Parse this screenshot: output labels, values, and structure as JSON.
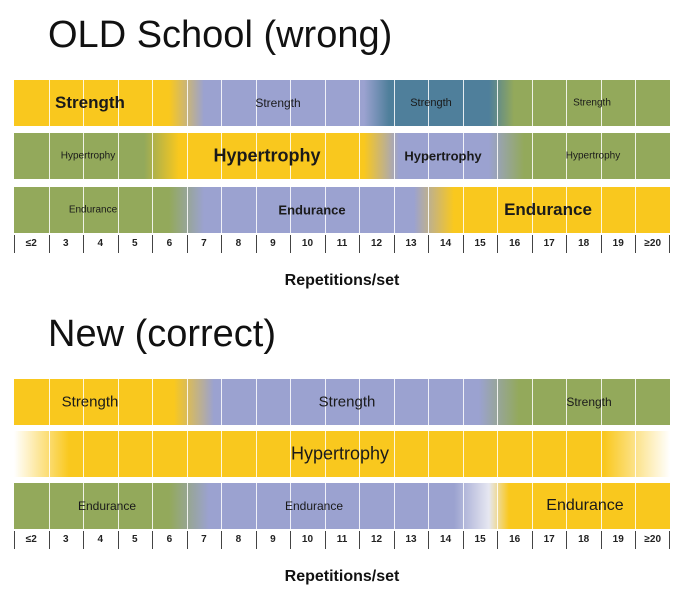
{
  "colors": {
    "yellow": "#F9C81E",
    "blue": "#9BA2D0",
    "green": "#93A95B",
    "teal": "#4F7F9B"
  },
  "old_section": {
    "title": "OLD School (wrong)",
    "rows": [
      {
        "id": "old-strength",
        "segments": [
          {
            "label": "Strength",
            "reps": "≤2–5",
            "color": "yellow",
            "emphasis": "bold"
          },
          {
            "label": "Strength",
            "reps": "7–11",
            "color": "blue",
            "emphasis": "medium"
          },
          {
            "label": "Strength",
            "reps": "12–15",
            "color": "teal",
            "emphasis": "small"
          },
          {
            "label": "Strength",
            "reps": "16–≥20",
            "color": "green",
            "emphasis": "small"
          }
        ]
      },
      {
        "id": "old-hypertrophy",
        "segments": [
          {
            "label": "Hypertrophy",
            "reps": "≤2–4",
            "color": "green",
            "emphasis": "small"
          },
          {
            "label": "Hypertrophy",
            "reps": "6–11",
            "color": "yellow",
            "emphasis": "bold"
          },
          {
            "label": "Hypertrophy",
            "reps": "12–15",
            "color": "blue",
            "emphasis": "medium"
          },
          {
            "label": "Hypertrophy",
            "reps": "16–≥20",
            "color": "green",
            "emphasis": "small"
          }
        ]
      },
      {
        "id": "old-endurance",
        "segments": [
          {
            "label": "Endurance",
            "reps": "≤2–5",
            "color": "green",
            "emphasis": "small"
          },
          {
            "label": "Endurance",
            "reps": "7–13",
            "color": "blue",
            "emphasis": "medium"
          },
          {
            "label": "Endurance",
            "reps": "14–≥20",
            "color": "yellow",
            "emphasis": "bold"
          }
        ]
      }
    ]
  },
  "new_section": {
    "title": "New (correct)",
    "rows": [
      {
        "id": "new-strength",
        "segments": [
          {
            "label": "Strength",
            "reps": "≤2–5",
            "color": "yellow",
            "emphasis": "plain"
          },
          {
            "label": "Strength",
            "reps": "7–14",
            "color": "blue",
            "emphasis": "plain"
          },
          {
            "label": "Strength",
            "reps": "16–≥20",
            "color": "green",
            "emphasis": "small"
          }
        ]
      },
      {
        "id": "new-hypertrophy",
        "segments": [
          {
            "label": "Hypertrophy",
            "reps": "3–19",
            "color": "yellow",
            "emphasis": "plain"
          }
        ]
      },
      {
        "id": "new-endurance",
        "segments": [
          {
            "label": "Endurance",
            "reps": "≤2–5",
            "color": "green",
            "emphasis": "small"
          },
          {
            "label": "Endurance",
            "reps": "7–14",
            "color": "blue",
            "emphasis": "small"
          },
          {
            "label": "Endurance",
            "reps": "16–≥20",
            "color": "yellow",
            "emphasis": "plain"
          }
        ]
      }
    ]
  },
  "axis": {
    "ticks": [
      "≤2",
      "3",
      "4",
      "5",
      "6",
      "7",
      "8",
      "9",
      "10",
      "11",
      "12",
      "13",
      "14",
      "15",
      "16",
      "17",
      "18",
      "19",
      "≥20"
    ],
    "label": "Repetitions/set"
  }
}
